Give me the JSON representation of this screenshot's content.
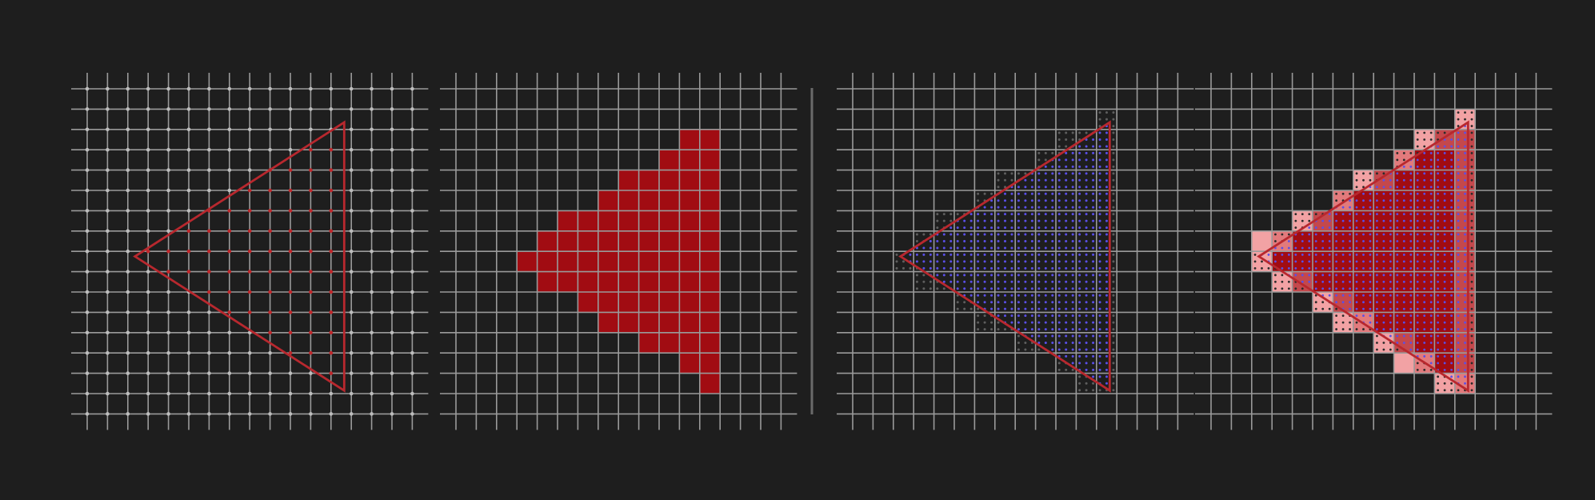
{
  "colors": {
    "background": "#1e1e1e",
    "grid": "#9a9a9a",
    "sample_dot": "#bdbdbd",
    "inside_dot": "#c0282c",
    "covered_cell": "#a10c12",
    "triangle_edge": "#b8282e",
    "subsample_dot": "#5a4fe8",
    "subsample_outside_dot": "#5e5e5e",
    "partial_light": "#f2a2a4",
    "partial_mid": "#e27a7c",
    "partial_strong": "#c4484c",
    "divider": "#6a6a6a"
  },
  "triangle": {
    "apex_right_top": [
      12.65,
      1.65
    ],
    "apex_right_bottom": [
      12.65,
      14.85
    ],
    "apex_left": [
      2.35,
      8.25
    ]
  },
  "panels": [
    {
      "id": "panel-sample-points",
      "mode": "point-sampling"
    },
    {
      "id": "panel-rasterized",
      "mode": "rasterized"
    },
    {
      "id": "panel-supersampling",
      "mode": "supersampling"
    },
    {
      "id": "panel-antialiased",
      "mode": "antialiased"
    }
  ]
}
